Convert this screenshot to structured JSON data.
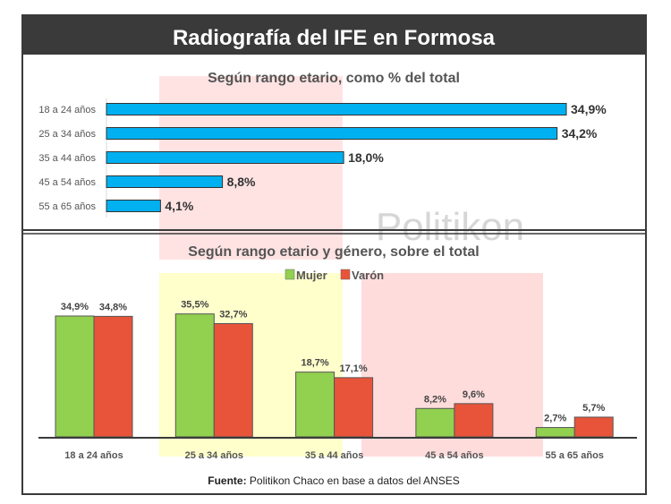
{
  "title": "Radiografía del IFE en Formosa",
  "watermark": "Politikon",
  "source_label": "Fuente:",
  "source_text": " Politikon Chaco en base a datos del ANSES",
  "chart_data": [
    {
      "type": "bar",
      "orientation": "horizontal",
      "title": "Según rango etario, como % del total",
      "categories": [
        "18 a 24 años",
        "25 a 34 años",
        "35 a 44 años",
        "45 a 54 años",
        "55 a 65 años"
      ],
      "values": [
        34.9,
        34.2,
        18.0,
        8.8,
        4.1
      ],
      "labels": [
        "34,9%",
        "34,2%",
        "18,0%",
        "8,8%",
        "4,1%"
      ],
      "color": "#00b0f0",
      "grid": false
    },
    {
      "type": "bar",
      "title": "Según rango etario y género, sobre el total",
      "categories": [
        "18 a 24 años",
        "25 a 34 años",
        "35 a 44 años",
        "45 a 54 años",
        "55 a 65 años"
      ],
      "legend": "top",
      "grid": false,
      "series": [
        {
          "name": "Mujer",
          "color": "#92d050",
          "values": [
            34.9,
            35.5,
            18.7,
            8.2,
            2.7
          ],
          "labels": [
            "34,9%",
            "35,5%",
            "18,7%",
            "8,2%",
            "2,7%"
          ]
        },
        {
          "name": "Varón",
          "color": "#e8543a",
          "values": [
            34.8,
            32.7,
            17.1,
            9.6,
            5.7
          ],
          "labels": [
            "34,8%",
            "32,7%",
            "17,1%",
            "9,6%",
            "5,7%"
          ]
        }
      ]
    }
  ]
}
